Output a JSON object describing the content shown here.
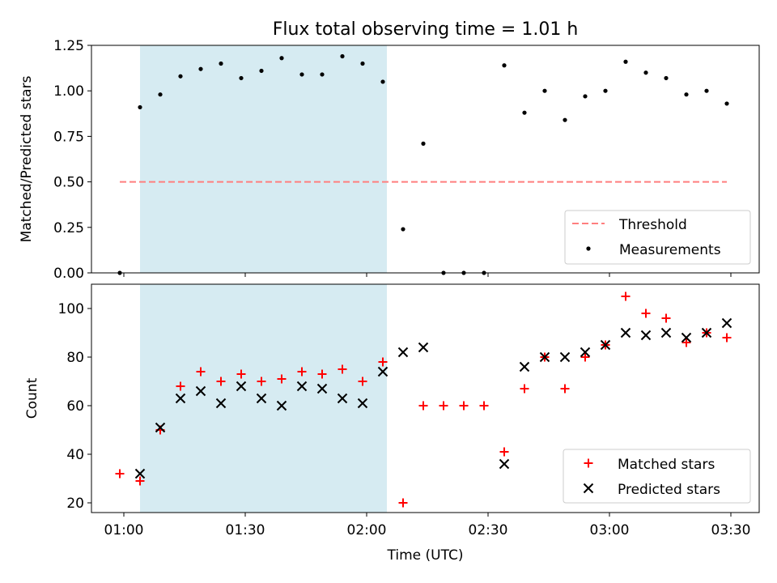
{
  "chart_data": [
    {
      "type": "scatter",
      "title": "Flux total observing time = 1.01 h",
      "xlabel": "",
      "ylabel": "Matched/Predicted stars",
      "xlim": [
        "00:52",
        "03:37"
      ],
      "ylim": [
        0,
        1.25
      ],
      "yticks": [
        0.0,
        0.25,
        0.5,
        0.75,
        1.0,
        1.25
      ],
      "ytick_labels": [
        "0.00",
        "0.25",
        "0.50",
        "0.75",
        "1.00",
        "1.25"
      ],
      "shaded_interval": [
        "01:04",
        "02:05"
      ],
      "shade_color": "#add8e6",
      "threshold": {
        "name": "Threshold",
        "value": 0.5,
        "x_range": [
          "00:59",
          "03:29"
        ],
        "color": "#ff7f7f"
      },
      "series": [
        {
          "name": "Measurements",
          "marker": "dot",
          "color": "#000000",
          "x": [
            "00:59",
            "01:04",
            "01:09",
            "01:14",
            "01:19",
            "01:24",
            "01:29",
            "01:34",
            "01:39",
            "01:44",
            "01:49",
            "01:54",
            "01:59",
            "02:04",
            "02:09",
            "02:14",
            "02:19",
            "02:24",
            "02:29",
            "02:34",
            "02:39",
            "02:44",
            "02:49",
            "02:54",
            "02:59",
            "03:04",
            "03:09",
            "03:14",
            "03:19",
            "03:24",
            "03:29"
          ],
          "y": [
            0.0,
            0.91,
            0.98,
            1.08,
            1.12,
            1.15,
            1.07,
            1.11,
            1.18,
            1.09,
            1.09,
            1.19,
            1.15,
            1.05,
            0.24,
            0.71,
            0.0,
            0.0,
            0.0,
            1.14,
            0.88,
            1.0,
            0.84,
            0.97,
            1.0,
            1.16,
            1.1,
            1.07,
            0.98,
            1.0,
            0.93
          ]
        }
      ],
      "legend": {
        "placement": "lower-right",
        "entries": [
          "Threshold",
          "Measurements"
        ]
      }
    },
    {
      "type": "scatter",
      "title": "",
      "xlabel": "Time (UTC)",
      "ylabel": "Count",
      "xlim": [
        "00:52",
        "03:37"
      ],
      "ylim": [
        16,
        110
      ],
      "yticks": [
        20,
        40,
        60,
        80,
        100
      ],
      "xticks": [
        "01:00",
        "01:30",
        "02:00",
        "02:30",
        "03:00",
        "03:30"
      ],
      "shaded_interval": [
        "01:04",
        "02:05"
      ],
      "shade_color": "#add8e6",
      "series": [
        {
          "name": "Matched stars",
          "marker": "plus",
          "color": "#ff0000",
          "x": [
            "00:59",
            "01:04",
            "01:09",
            "01:14",
            "01:19",
            "01:24",
            "01:29",
            "01:34",
            "01:39",
            "01:44",
            "01:49",
            "01:54",
            "01:59",
            "02:04",
            "02:09",
            "02:14",
            "02:19",
            "02:24",
            "02:29",
            "02:34",
            "02:39",
            "02:44",
            "02:49",
            "02:54",
            "02:59",
            "03:04",
            "03:09",
            "03:14",
            "03:19",
            "03:24",
            "03:29"
          ],
          "y": [
            32,
            29,
            50,
            68,
            74,
            70,
            73,
            70,
            71,
            74,
            73,
            75,
            70,
            78,
            20,
            60,
            60,
            60,
            60,
            41,
            67,
            80,
            67,
            80,
            85,
            105,
            98,
            96,
            86,
            90,
            88
          ]
        },
        {
          "name": "Predicted stars",
          "marker": "x",
          "color": "#000000",
          "x": [
            "01:04",
            "01:09",
            "01:14",
            "01:19",
            "01:24",
            "01:29",
            "01:34",
            "01:39",
            "01:44",
            "01:49",
            "01:54",
            "01:59",
            "02:04",
            "02:09",
            "02:14",
            "02:34",
            "02:39",
            "02:44",
            "02:49",
            "02:54",
            "02:59",
            "03:04",
            "03:09",
            "03:14",
            "03:19",
            "03:24",
            "03:29"
          ],
          "y": [
            32,
            51,
            63,
            66,
            61,
            68,
            63,
            60,
            68,
            67,
            63,
            61,
            74,
            82,
            84,
            36,
            76,
            80,
            80,
            82,
            85,
            90,
            89,
            90,
            88,
            90,
            94
          ]
        }
      ],
      "legend": {
        "placement": "lower-right",
        "entries": [
          "Matched stars",
          "Predicted stars"
        ]
      }
    }
  ]
}
